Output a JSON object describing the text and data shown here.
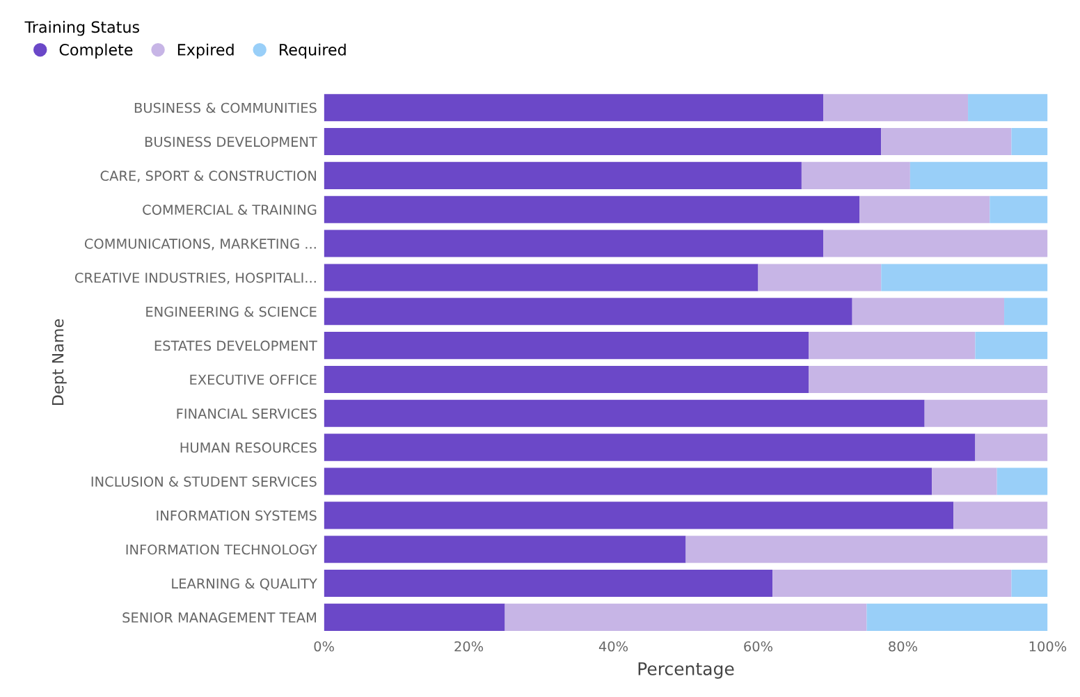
{
  "chart_data": {
    "type": "bar",
    "orientation": "horizontal",
    "stacked": true,
    "categories": [
      "BUSINESS & COMMUNITIES",
      "BUSINESS DEVELOPMENT",
      "CARE, SPORT & CONSTRUCTION",
      "COMMERCIAL & TRAINING",
      "COMMUNICATIONS, MARKETING ...",
      "CREATIVE INDUSTRIES, HOSPITALI...",
      "ENGINEERING & SCIENCE",
      "ESTATES DEVELOPMENT",
      "EXECUTIVE OFFICE",
      "FINANCIAL SERVICES",
      "HUMAN RESOURCES",
      "INCLUSION & STUDENT SERVICES",
      "INFORMATION SYSTEMS",
      "INFORMATION TECHNOLOGY",
      "LEARNING & QUALITY",
      "SENIOR MANAGEMENT TEAM"
    ],
    "series": [
      {
        "name": "Complete",
        "color": "#6b48c8",
        "values": [
          69,
          77,
          66,
          74,
          69,
          60,
          73,
          67,
          67,
          83,
          90,
          84,
          87,
          50,
          62,
          25
        ]
      },
      {
        "name": "Expired",
        "color": "#c7b5e6",
        "values": [
          20,
          18,
          15,
          18,
          31,
          17,
          21,
          23,
          33,
          17,
          10,
          9,
          13,
          50,
          33,
          50
        ]
      },
      {
        "name": "Required",
        "color": "#99cff8",
        "values": [
          11,
          5,
          19,
          8,
          0,
          23,
          6,
          10,
          0,
          0,
          0,
          7,
          0,
          0,
          5,
          25
        ]
      }
    ],
    "xlim": [
      0,
      100
    ],
    "xticks": [
      {
        "value": 0,
        "label": "0%"
      },
      {
        "value": 20,
        "label": "20%"
      },
      {
        "value": 40,
        "label": "40%"
      },
      {
        "value": 60,
        "label": "60%"
      },
      {
        "value": 80,
        "label": "80%"
      },
      {
        "value": 100,
        "label": "100%"
      }
    ],
    "xlabel": "Percentage",
    "ylabel": "Dept Name",
    "legend_title": "Training Status",
    "legend": "top left",
    "grid": false
  }
}
